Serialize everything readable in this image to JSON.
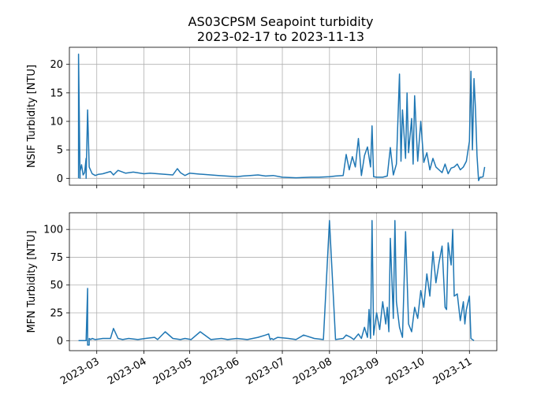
{
  "figure": {
    "title_line1": "AS03CPSM Seapoint turbidity",
    "title_line2": "2023-02-17 to 2023-11-13"
  },
  "colors": {
    "series": "#1f77b4"
  },
  "x_ticks": [
    "2023-03",
    "2023-04",
    "2023-05",
    "2023-06",
    "2023-07",
    "2023-08",
    "2023-09",
    "2023-10",
    "2023-11"
  ],
  "chart_data": [
    {
      "type": "line",
      "ylabel": "NSIF Turbidity [NTU]",
      "xlabel": "",
      "x_range": [
        "2023-02-17",
        "2023-11-13"
      ],
      "xlim": [
        "2023-02-11",
        "2023-11-19"
      ],
      "ylim": [
        -1.2,
        23
      ],
      "y_ticks": [
        0,
        5,
        10,
        15,
        20
      ],
      "x_ticks_shown": false,
      "grid": true,
      "series": [
        {
          "x": [
            "2023-02-17",
            "2023-02-17",
            "2023-02-18",
            "2023-02-18",
            "2023-02-19",
            "2023-02-20",
            "2023-02-21",
            "2023-02-22",
            "2023-02-22",
            "2023-02-23",
            "2023-02-24",
            "2023-02-26",
            "2023-02-28",
            "2023-03-02",
            "2023-03-05",
            "2023-03-10",
            "2023-03-12",
            "2023-03-15",
            "2023-03-20",
            "2023-03-25",
            "2023-04-01",
            "2023-04-05",
            "2023-04-10",
            "2023-04-15",
            "2023-04-20",
            "2023-04-23",
            "2023-04-25",
            "2023-04-28",
            "2023-05-01",
            "2023-05-05",
            "2023-05-10",
            "2023-05-15",
            "2023-05-20",
            "2023-05-25",
            "2023-06-01",
            "2023-06-05",
            "2023-06-10",
            "2023-06-15",
            "2023-06-20",
            "2023-06-25",
            "2023-07-01",
            "2023-07-10",
            "2023-07-20",
            "2023-07-25",
            "2023-08-01",
            "2023-08-05",
            "2023-08-10",
            "2023-08-12",
            "2023-08-14",
            "2023-08-16",
            "2023-08-18",
            "2023-08-20",
            "2023-08-22",
            "2023-08-24",
            "2023-08-26",
            "2023-08-28",
            "2023-08-29",
            "2023-08-30",
            "2023-09-01",
            "2023-09-05",
            "2023-09-08",
            "2023-09-10",
            "2023-09-12",
            "2023-09-14",
            "2023-09-16",
            "2023-09-17",
            "2023-09-18",
            "2023-09-20",
            "2023-09-21",
            "2023-09-22",
            "2023-09-24",
            "2023-09-25",
            "2023-09-26",
            "2023-09-28",
            "2023-09-30",
            "2023-10-02",
            "2023-10-04",
            "2023-10-06",
            "2023-10-08",
            "2023-10-10",
            "2023-10-12",
            "2023-10-14",
            "2023-10-16",
            "2023-10-18",
            "2023-10-20",
            "2023-10-22",
            "2023-10-24",
            "2023-10-26",
            "2023-10-28",
            "2023-10-30",
            "2023-11-01",
            "2023-11-02",
            "2023-11-03",
            "2023-11-04",
            "2023-11-05",
            "2023-11-06",
            "2023-11-07",
            "2023-11-08",
            "2023-11-09",
            "2023-11-10",
            "2023-11-11"
          ],
          "y": [
            0,
            21.8,
            0,
            1.2,
            2.4,
            0.6,
            1.0,
            3.5,
            0,
            12.0,
            2.0,
            0.8,
            0.5,
            0.7,
            0.8,
            1.2,
            0.6,
            1.4,
            0.9,
            1.1,
            0.8,
            0.9,
            0.8,
            0.7,
            0.6,
            1.7,
            1.0,
            0.5,
            0.9,
            0.8,
            0.7,
            0.6,
            0.5,
            0.4,
            0.3,
            0.4,
            0.5,
            0.6,
            0.4,
            0.5,
            0.2,
            0.1,
            0.2,
            0.2,
            0.3,
            0.4,
            0.5,
            4.2,
            1.5,
            3.8,
            2.0,
            7.0,
            0.5,
            4.0,
            5.5,
            2.0,
            9.2,
            0.3,
            0.2,
            0.2,
            0.4,
            5.4,
            0.6,
            2.5,
            18.3,
            3.0,
            12.0,
            3.5,
            15.0,
            4.5,
            10.5,
            2.5,
            14.5,
            3.0,
            10.0,
            2.8,
            4.5,
            1.5,
            3.5,
            2.0,
            1.5,
            1.0,
            2.5,
            0.8,
            1.8,
            2.0,
            2.5,
            1.5,
            2.0,
            3.0,
            6.5,
            18.8,
            5.0,
            17.5,
            12.0,
            4.0,
            -0.4,
            0.2,
            0.2,
            0.3,
            2.0
          ]
        }
      ]
    },
    {
      "type": "line",
      "ylabel": "MFN Turbidity [NTU]",
      "xlabel": "",
      "x_range": [
        "2023-02-17",
        "2023-11-13"
      ],
      "xlim": [
        "2023-02-11",
        "2023-11-19"
      ],
      "ylim": [
        -9,
        115
      ],
      "y_ticks": [
        0,
        25,
        50,
        75,
        100
      ],
      "x_ticks_shown": true,
      "grid": true,
      "series": [
        {
          "x": [
            "2023-02-17",
            "2023-02-20",
            "2023-02-22",
            "2023-02-23",
            "2023-02-23",
            "2023-02-24",
            "2023-02-24",
            "2023-02-25",
            "2023-02-26",
            "2023-02-28",
            "2023-03-05",
            "2023-03-10",
            "2023-03-12",
            "2023-03-15",
            "2023-03-18",
            "2023-03-22",
            "2023-03-28",
            "2023-04-02",
            "2023-04-08",
            "2023-04-10",
            "2023-04-15",
            "2023-04-20",
            "2023-04-25",
            "2023-04-28",
            "2023-05-02",
            "2023-05-08",
            "2023-05-15",
            "2023-05-22",
            "2023-05-26",
            "2023-06-01",
            "2023-06-08",
            "2023-06-15",
            "2023-06-20",
            "2023-06-22",
            "2023-06-23",
            "2023-06-24",
            "2023-06-25",
            "2023-06-28",
            "2023-07-05",
            "2023-07-10",
            "2023-07-15",
            "2023-07-22",
            "2023-07-28",
            "2023-08-01",
            "2023-08-05",
            "2023-08-10",
            "2023-08-12",
            "2023-08-15",
            "2023-08-17",
            "2023-08-20",
            "2023-08-22",
            "2023-08-24",
            "2023-08-26",
            "2023-08-27",
            "2023-08-28",
            "2023-08-29",
            "2023-08-30",
            "2023-09-01",
            "2023-09-03",
            "2023-09-05",
            "2023-09-07",
            "2023-09-08",
            "2023-09-09",
            "2023-09-10",
            "2023-09-12",
            "2023-09-13",
            "2023-09-14",
            "2023-09-16",
            "2023-09-18",
            "2023-09-20",
            "2023-09-22",
            "2023-09-24",
            "2023-09-26",
            "2023-09-28",
            "2023-09-30",
            "2023-10-02",
            "2023-10-04",
            "2023-10-06",
            "2023-10-08",
            "2023-10-10",
            "2023-10-12",
            "2023-10-14",
            "2023-10-16",
            "2023-10-17",
            "2023-10-18",
            "2023-10-20",
            "2023-10-21",
            "2023-10-22",
            "2023-10-24",
            "2023-10-26",
            "2023-10-28",
            "2023-10-29",
            "2023-10-30",
            "2023-11-01",
            "2023-11-02",
            "2023-11-04"
          ],
          "y": [
            0,
            0,
            0,
            47,
            -4,
            -4,
            2,
            1,
            2,
            1,
            2,
            2,
            11,
            2,
            1,
            2,
            1,
            2,
            3,
            1,
            8,
            2,
            1,
            2,
            1,
            8,
            1,
            2,
            1,
            2,
            1,
            3,
            5,
            6,
            1,
            2,
            1,
            3,
            2,
            1,
            5,
            2,
            1,
            108,
            1,
            2,
            5,
            3,
            1,
            6,
            2,
            12,
            3,
            28,
            2,
            108,
            5,
            25,
            10,
            35,
            15,
            30,
            8,
            92,
            20,
            108,
            35,
            12,
            3,
            98,
            15,
            8,
            30,
            20,
            45,
            30,
            60,
            40,
            80,
            52,
            70,
            85,
            30,
            28,
            88,
            68,
            100,
            40,
            42,
            18,
            35,
            15,
            28,
            40,
            2,
            0
          ]
        }
      ]
    }
  ]
}
